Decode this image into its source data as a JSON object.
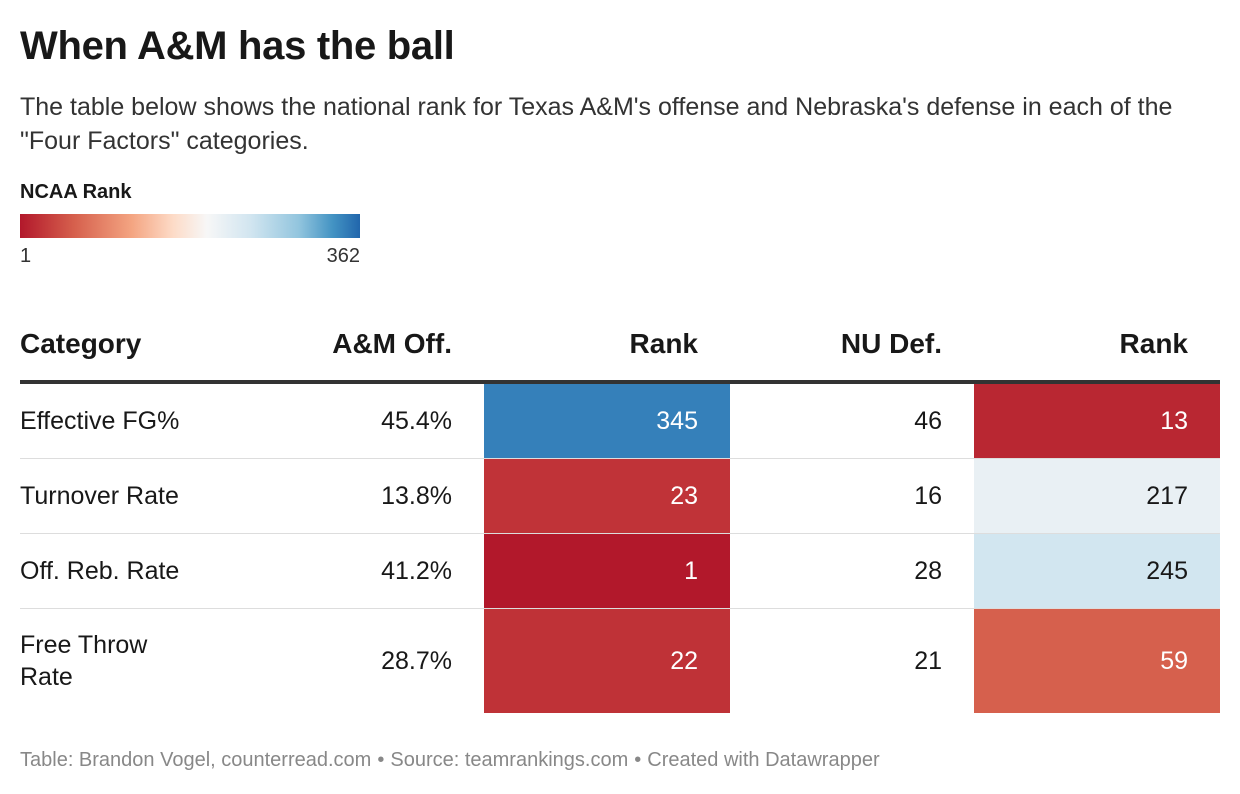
{
  "title": "When A&M has the ball",
  "subtitle": "The table below shows the national rank for Texas A&M's offense and Nebraska's defense in each of the \"Four Factors\" categories.",
  "legend": {
    "title": "NCAA Rank",
    "min": "1",
    "max": "362",
    "colors": [
      "#b2182b",
      "#f4a582",
      "#f7f7f7",
      "#92c5de",
      "#2166ac"
    ]
  },
  "chart_data": {
    "type": "table",
    "columns": [
      "Category",
      "A&M Off.",
      "Rank",
      "NU Def.",
      "Rank"
    ],
    "rank_range": [
      1,
      362
    ],
    "rows": [
      {
        "category": "Effective FG%",
        "off": "45.4%",
        "off_rank": 345,
        "def": "46",
        "def_rank": 13
      },
      {
        "category": "Turnover Rate",
        "off": "13.8%",
        "off_rank": 23,
        "def": "16",
        "def_rank": 217
      },
      {
        "category": "Off. Reb. Rate",
        "off": "41.2%",
        "off_rank": 1,
        "def": "28",
        "def_rank": 245
      },
      {
        "category": "Free Throw\nRate",
        "off": "28.7%",
        "off_rank": 22,
        "def": "21",
        "def_rank": 59
      }
    ]
  },
  "footer": {
    "credit": "Table: Brandon Vogel, counterread.com",
    "source": "Source: teamrankings.com",
    "created": "Created with Datawrapper",
    "separator": "•"
  }
}
